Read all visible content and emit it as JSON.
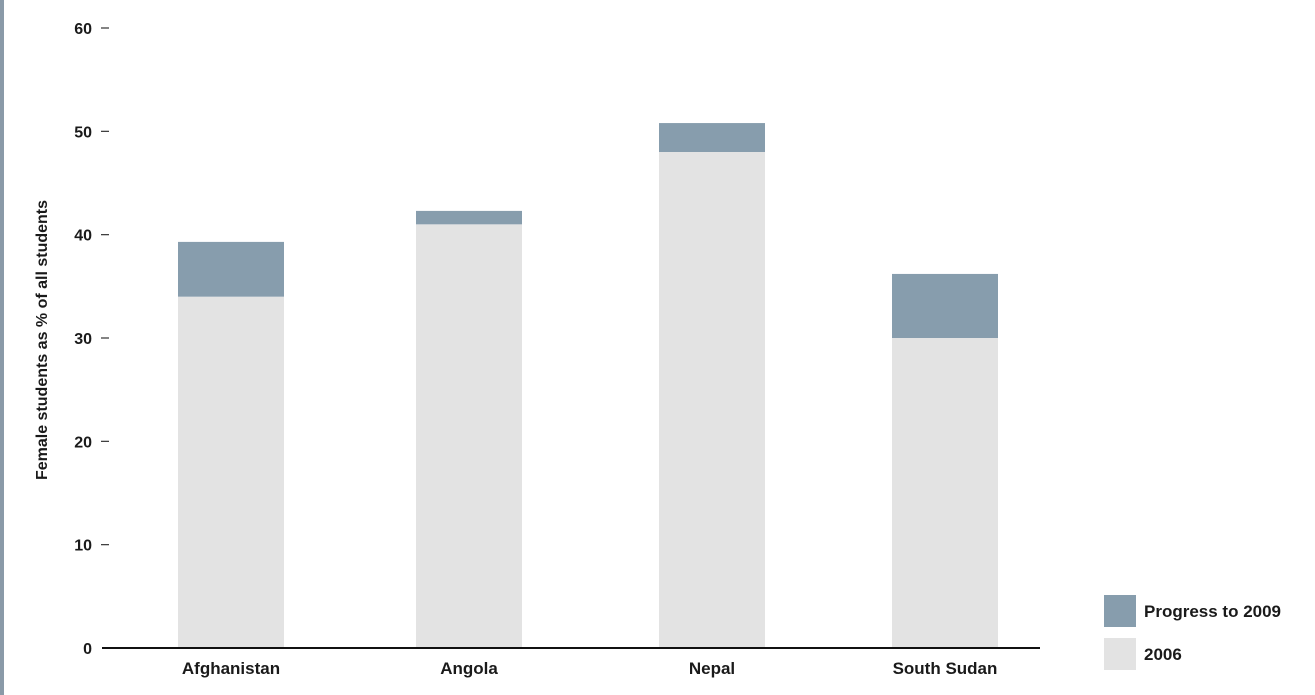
{
  "chart_data": {
    "type": "bar",
    "stacked": true,
    "categories": [
      "Afghanistan",
      "Angola",
      "Nepal",
      "South Sudan"
    ],
    "series": [
      {
        "name": "2006",
        "values": [
          34,
          41,
          48,
          30
        ],
        "color": "#e3e3e3"
      },
      {
        "name": "Progress to 2009",
        "values": [
          5.3,
          1.3,
          2.8,
          6.2
        ],
        "color": "#879dad"
      }
    ],
    "ylabel": "Female students as % of all students",
    "xlabel": "",
    "ylim": [
      0,
      60
    ],
    "yticks": [
      0,
      10,
      20,
      30,
      40,
      50,
      60
    ],
    "grid": false,
    "legend_position": "bottom-right",
    "legend_order": [
      "Progress to 2009",
      "2006"
    ]
  }
}
